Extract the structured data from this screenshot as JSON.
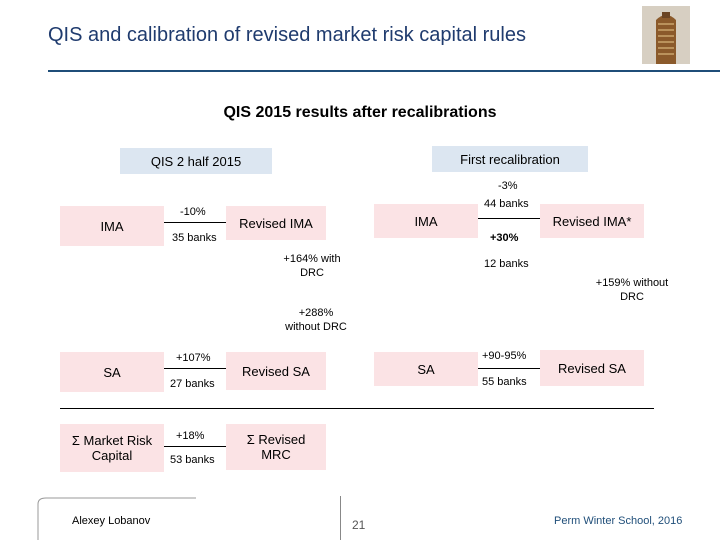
{
  "header": {
    "title": "QIS and calibration of revised market risk capital rules"
  },
  "subtitle": "QIS 2015 results after recalibrations",
  "columns": {
    "left": "QIS 2 half 2015",
    "right": "First recalibration"
  },
  "rows": {
    "ima": {
      "label": "IMA",
      "change": "-10%",
      "banks": "35 banks",
      "result": "Revised IMA",
      "recal_label": "IMA",
      "recal_change_top": "-3%",
      "recal_banks_top": "44 banks",
      "recal_change": "+30%",
      "recal_result": "Revised IMA*"
    },
    "sa": {
      "label": "SA",
      "change": "+107%",
      "banks": "27 banks",
      "result": "Revised SA",
      "recal_label": "SA",
      "recal_change": "+90-95%",
      "recal_banks": "55 banks",
      "recal_result": "Revised SA"
    },
    "mrc": {
      "label": "Σ Market Risk Capital",
      "change": "+18%",
      "banks": "53 banks",
      "result": "Σ Revised MRC"
    }
  },
  "annotations": {
    "with_drc": "+164% with DRC",
    "recal_banks_mid": "12 banks",
    "without_drc_159": "+159% without DRC",
    "without_drc_288": "+288% without DRC"
  },
  "footer": {
    "author": "Alexey Lobanov",
    "page": "21",
    "event": "Perm Winter School, 2016"
  }
}
